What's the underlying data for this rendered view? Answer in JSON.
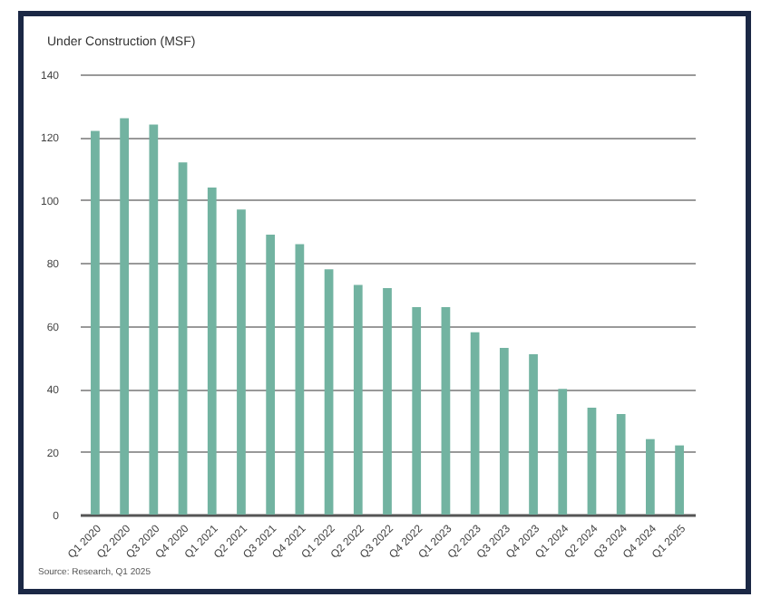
{
  "chart_data": {
    "type": "bar",
    "title": "Under Construction (MSF)",
    "categories": [
      "Q1 2020",
      "Q2 2020",
      "Q3 2020",
      "Q4 2020",
      "Q1 2021",
      "Q2 2021",
      "Q3 2021",
      "Q4 2021",
      "Q1 2022",
      "Q2 2022",
      "Q3 2022",
      "Q4 2022",
      "Q1 2023",
      "Q2 2023",
      "Q3 2023",
      "Q4 2023",
      "Q1 2024",
      "Q2 2024",
      "Q3 2024",
      "Q4 2024",
      "Q1 2025"
    ],
    "values": [
      122,
      126,
      124,
      112,
      104,
      97,
      89,
      86,
      78,
      73,
      72,
      66,
      66,
      58,
      53,
      51,
      40,
      34,
      32,
      24,
      22
    ],
    "color": "#72b3a1",
    "ylim": [
      0,
      140
    ],
    "yticks": [
      0,
      20,
      40,
      60,
      80,
      100,
      120,
      140
    ],
    "grid": "y",
    "annotations": [
      "Source: Research, Q1 2025"
    ]
  }
}
